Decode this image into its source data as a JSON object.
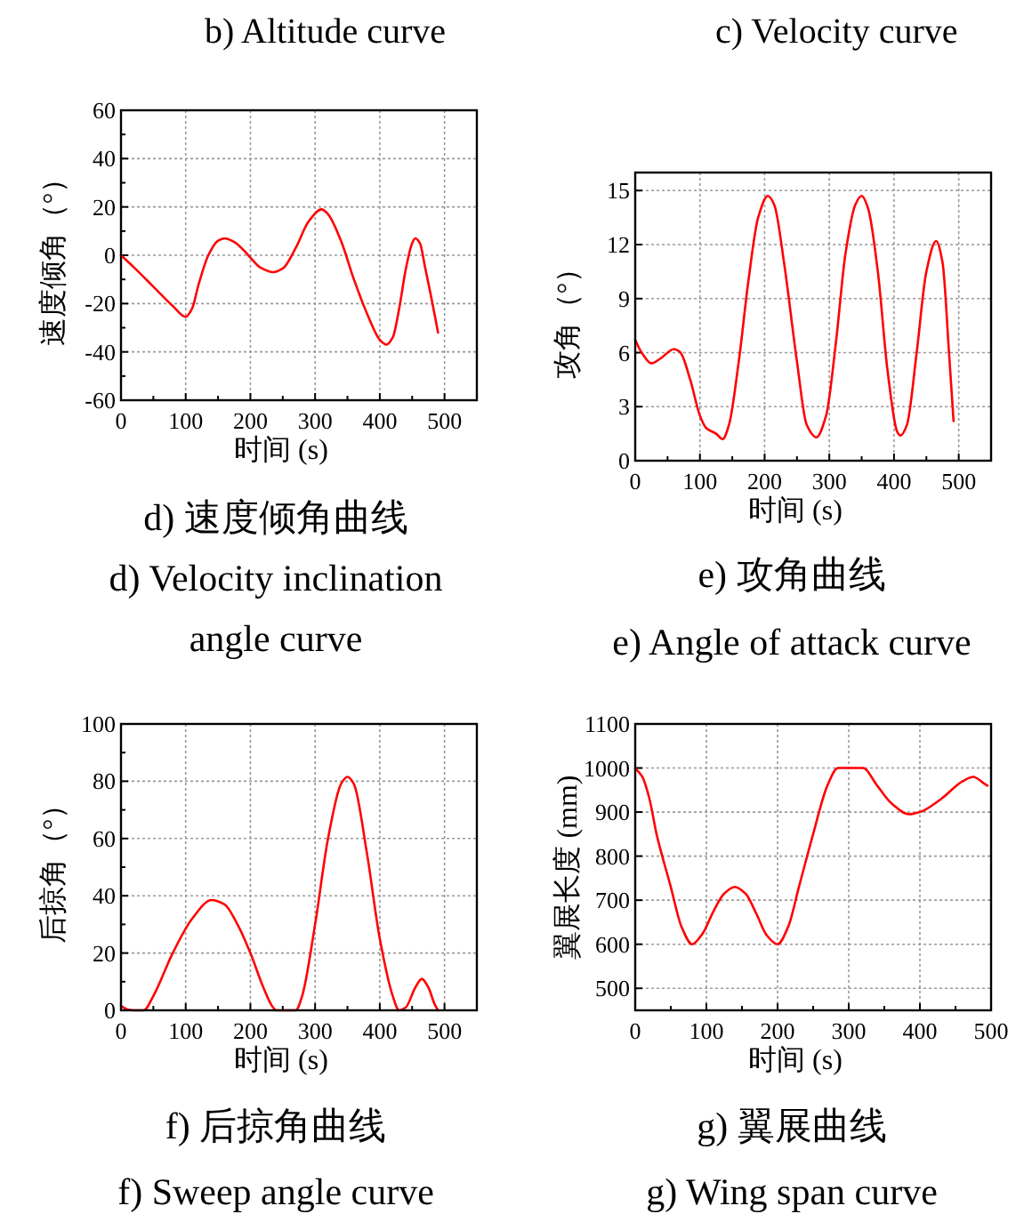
{
  "chart_data": [
    {
      "type": "other",
      "annotations": [
        "b) Altitude curve",
        "c) Velocity curve"
      ]
    },
    {
      "type": "line",
      "title": "d)  速度倾角曲线",
      "subtitle": "d) Velocity inclination angle curve",
      "xlabel": "时间 (s)",
      "ylabel": "速度倾角（°）",
      "xlim": [
        0,
        550
      ],
      "ylim": [
        -60,
        60
      ],
      "xticks": [
        0,
        {
          "value": 50,
          "label": null
        },
        100,
        {
          "value": 150,
          "label": null
        },
        200,
        {
          "value": 250,
          "label": null
        },
        300,
        {
          "value": 350,
          "label": null
        },
        400,
        {
          "value": 450,
          "label": null
        },
        500
      ],
      "yticks": [
        -60,
        {
          "value": -50,
          "label": null
        },
        -40,
        {
          "value": -30,
          "label": null
        },
        -20,
        {
          "value": -10,
          "label": null
        },
        0,
        {
          "value": 10,
          "label": null
        },
        20,
        {
          "value": 30,
          "label": null
        },
        40,
        {
          "value": 50,
          "label": null
        },
        60
      ],
      "grid": true,
      "line_style": "solid",
      "series": [
        {
          "color": "#ff0000",
          "x": [
            0,
            20,
            50,
            80,
            100,
            110,
            120,
            135,
            150,
            160,
            175,
            190,
            200,
            215,
            235,
            250,
            270,
            290,
            310,
            320,
            340,
            360,
            380,
            400,
            410,
            420,
            430,
            440,
            450,
            455,
            462,
            470,
            480,
            490
          ],
          "values": [
            0,
            -5,
            -13,
            -21,
            -25.5,
            -22,
            -12,
            0,
            6,
            7,
            5.5,
            2,
            -1,
            -5,
            -7,
            -5.5,
            3,
            14,
            19,
            17,
            6,
            -10,
            -24,
            -35,
            -37,
            -34,
            -22,
            -6,
            5,
            7,
            5,
            -5,
            -18,
            -32
          ]
        }
      ]
    },
    {
      "type": "line",
      "title": "e)  攻角曲线",
      "subtitle": "e) Angle of attack curve",
      "xlabel": "时间 (s)",
      "ylabel": "攻角（°）",
      "xlim": [
        0,
        550
      ],
      "ylim": [
        0,
        16
      ],
      "xticks": [
        0,
        {
          "value": 50,
          "label": null
        },
        100,
        {
          "value": 150,
          "label": null
        },
        200,
        {
          "value": 250,
          "label": null
        },
        300,
        {
          "value": 350,
          "label": null
        },
        400,
        {
          "value": 450,
          "label": null
        },
        500
      ],
      "yticks": [
        0,
        3,
        6,
        9,
        12,
        15
      ],
      "grid": true,
      "line_style": "solid",
      "series": [
        {
          "color": "#ff0000",
          "x": [
            0,
            10,
            25,
            40,
            60,
            70,
            85,
            100,
            110,
            125,
            135,
            145,
            160,
            175,
            190,
            205,
            215,
            230,
            250,
            265,
            280,
            295,
            310,
            325,
            340,
            350,
            360,
            375,
            390,
            405,
            410,
            420,
            435,
            450,
            465,
            475,
            485,
            492
          ],
          "values": [
            6.7,
            6,
            5.4,
            5.7,
            6.2,
            6,
            4.5,
            2.5,
            1.8,
            1.5,
            1.2,
            2,
            5.5,
            10,
            13.5,
            14.7,
            14.2,
            11,
            5.5,
            2,
            1.3,
            2.5,
            6.5,
            11.5,
            14.2,
            14.7,
            14,
            10.5,
            5,
            1.6,
            1.4,
            2,
            6,
            10.5,
            12.2,
            11,
            6,
            2.2
          ]
        }
      ]
    },
    {
      "type": "line",
      "title": "f)  后掠角曲线",
      "subtitle": "f) Sweep angle curve",
      "xlabel": "时间 (s)",
      "ylabel": "后掠角（°）",
      "xlim": [
        0,
        550
      ],
      "ylim": [
        0,
        100
      ],
      "xticks": [
        0,
        {
          "value": 50,
          "label": null
        },
        100,
        {
          "value": 150,
          "label": null
        },
        200,
        {
          "value": 250,
          "label": null
        },
        300,
        {
          "value": 350,
          "label": null
        },
        400,
        {
          "value": 450,
          "label": null
        },
        500
      ],
      "yticks": [
        0,
        {
          "value": 10,
          "label": null
        },
        20,
        {
          "value": 30,
          "label": null
        },
        40,
        {
          "value": 50,
          "label": null
        },
        60,
        {
          "value": 70,
          "label": null
        },
        80,
        {
          "value": 90,
          "label": null
        },
        100
      ],
      "grid": true,
      "line_style": "solid",
      "series": [
        {
          "color": "#ff0000",
          "x": [
            0,
            10,
            20,
            35,
            50,
            80,
            110,
            140,
            160,
            180,
            200,
            220,
            235,
            240,
            270,
            280,
            300,
            320,
            340,
            350,
            360,
            380,
            400,
            420,
            430,
            440,
            455,
            465,
            475,
            485,
            490
          ],
          "values": [
            1.5,
            0.3,
            0,
            0,
            5,
            20,
            32,
            38.5,
            37,
            30,
            20,
            8,
            1,
            0,
            0,
            5,
            30,
            60,
            79,
            81.5,
            79,
            55,
            25,
            5,
            0,
            1,
            8,
            11,
            8,
            2,
            0
          ]
        }
      ]
    },
    {
      "type": "line",
      "title": "g)  翼展曲线",
      "subtitle": "g) Wing span curve",
      "xlabel": "时间 (s)",
      "ylabel": "翼展长度 (mm)",
      "xlim": [
        0,
        500
      ],
      "ylim": [
        450,
        1100
      ],
      "xticks": [
        0,
        {
          "value": 50,
          "label": null
        },
        100,
        {
          "value": 150,
          "label": null
        },
        200,
        {
          "value": 250,
          "label": null
        },
        300,
        {
          "value": 350,
          "label": null
        },
        400,
        {
          "value": 450,
          "label": null
        },
        500
      ],
      "yticks": [
        500,
        600,
        700,
        800,
        900,
        1000,
        1100
      ],
      "grid": true,
      "line_style": "solid",
      "series": [
        {
          "color": "#ff0000",
          "x": [
            0,
            10,
            20,
            30,
            50,
            65,
            80,
            95,
            110,
            125,
            140,
            155,
            170,
            185,
            200,
            215,
            230,
            250,
            270,
            285,
            320,
            340,
            360,
            385,
            400,
            430,
            460,
            475,
            490,
            495
          ],
          "values": [
            1000,
            980,
            930,
            850,
            730,
            640,
            600,
            625,
            675,
            715,
            730,
            715,
            670,
            620,
            600,
            640,
            730,
            850,
            960,
            1000,
            1000,
            960,
            920,
            895,
            900,
            930,
            970,
            980,
            965,
            960
          ]
        }
      ]
    }
  ]
}
